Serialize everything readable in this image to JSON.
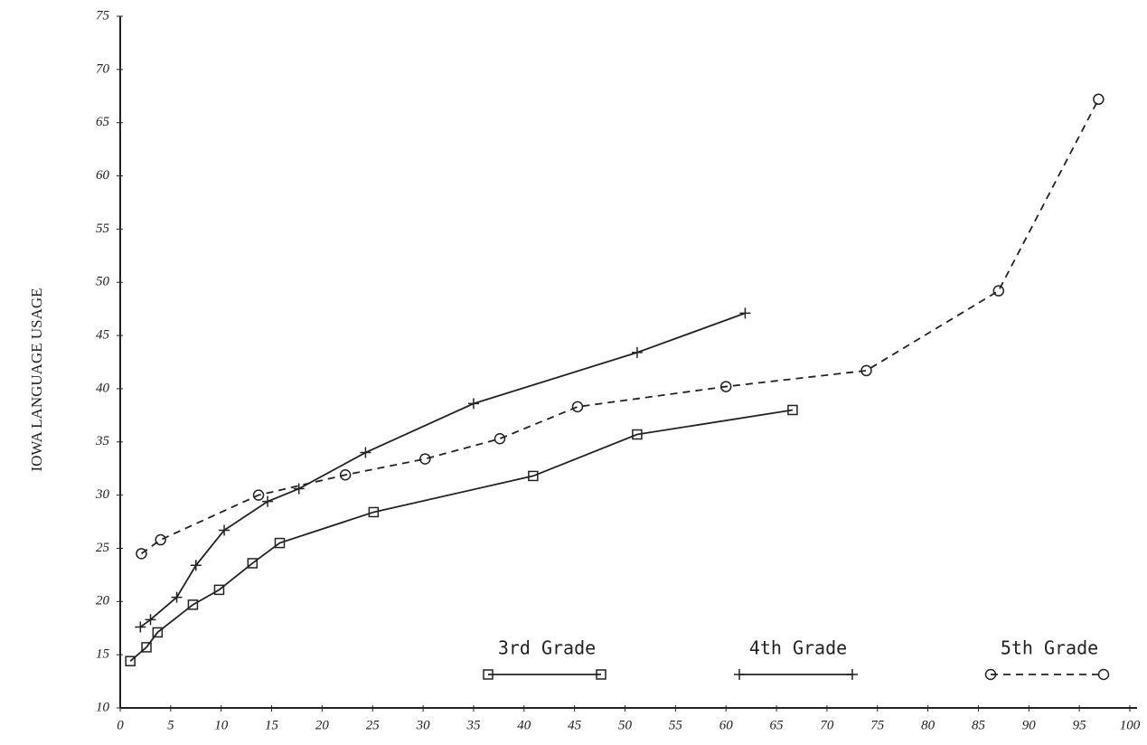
{
  "chart_data": {
    "type": "line",
    "y_label": "IOWA LANGUAGE USAGE",
    "xlim": [
      0,
      100
    ],
    "xticks": [
      0,
      5,
      10,
      15,
      20,
      25,
      30,
      35,
      40,
      45,
      50,
      55,
      60,
      65,
      70,
      75,
      80,
      85,
      90,
      95,
      100
    ],
    "ylim": [
      10,
      75
    ],
    "yticks": [
      10,
      15,
      20,
      25,
      30,
      35,
      40,
      45,
      50,
      55,
      60,
      65,
      70,
      75
    ],
    "series": [
      {
        "name": "3rd Grade",
        "color": "#222",
        "dash": false,
        "marker": "square",
        "x": [
          1.0,
          2.6,
          3.7,
          7.2,
          9.8,
          13.1,
          15.8,
          25.1,
          40.9,
          51.2,
          66.6
        ],
        "values": [
          14.4,
          15.7,
          17.1,
          19.7,
          21.1,
          23.6,
          25.5,
          28.4,
          31.8,
          35.7,
          38.0
        ]
      },
      {
        "name": "4th Grade",
        "color": "#222",
        "dash": false,
        "marker": "plus",
        "x": [
          2.0,
          3.0,
          5.6,
          7.5,
          10.3,
          14.6,
          17.7,
          24.3,
          35.0,
          51.2,
          61.9
        ],
        "values": [
          17.6,
          18.3,
          20.4,
          23.4,
          26.7,
          29.4,
          30.6,
          34.0,
          38.6,
          43.4,
          47.1
        ]
      },
      {
        "name": "5th Grade",
        "color": "#222",
        "dash": true,
        "marker": "circle",
        "x": [
          2.1,
          4.0,
          13.7,
          22.3,
          30.2,
          37.6,
          45.3,
          60.0,
          73.9,
          87.0,
          96.9
        ],
        "values": [
          24.5,
          25.8,
          30.0,
          31.9,
          33.4,
          35.3,
          38.3,
          40.2,
          41.7,
          49.2,
          67.2
        ]
      }
    ]
  }
}
